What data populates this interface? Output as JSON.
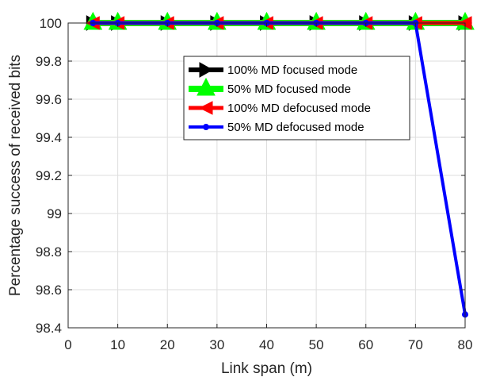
{
  "chart_data": {
    "type": "line",
    "title": "",
    "xlabel": "Link span (m)",
    "ylabel": "Percentage success of received bits",
    "xlim": [
      0,
      80
    ],
    "ylim": [
      98.4,
      100
    ],
    "xticks": [
      0,
      10,
      20,
      30,
      40,
      50,
      60,
      70,
      80
    ],
    "yticks": [
      98.4,
      98.6,
      98.8,
      99,
      99.2,
      99.4,
      99.6,
      99.8,
      100
    ],
    "xtick_labels": [
      "0",
      "10",
      "20",
      "30",
      "40",
      "50",
      "60",
      "70",
      "80"
    ],
    "ytick_labels": [
      "98.4",
      "98.6",
      "98.8",
      "99",
      "99.2",
      "99.4",
      "99.6",
      "99.8",
      "100"
    ],
    "grid": true,
    "legend_position": "upper-center",
    "x": [
      5,
      10,
      20,
      30,
      40,
      50,
      60,
      70,
      80
    ],
    "series": [
      {
        "name": "100% MD focused mode",
        "color": "#000000",
        "marker": "triangle-right",
        "values": [
          100,
          100,
          100,
          100,
          100,
          100,
          100,
          100,
          100
        ]
      },
      {
        "name": "50% MD focused mode",
        "color": "#00ff00",
        "marker": "triangle-up",
        "values": [
          100,
          100,
          100,
          100,
          100,
          100,
          100,
          100,
          100
        ]
      },
      {
        "name": "100% MD defocused mode",
        "color": "#ff0000",
        "marker": "triangle-left",
        "values": [
          100,
          100,
          100,
          100,
          100,
          100,
          100,
          100,
          100
        ]
      },
      {
        "name": "50% MD defocused mode",
        "color": "#0000ff",
        "marker": "point",
        "values": [
          100,
          100,
          100,
          100,
          100,
          100,
          100,
          100,
          98.47
        ]
      }
    ]
  }
}
